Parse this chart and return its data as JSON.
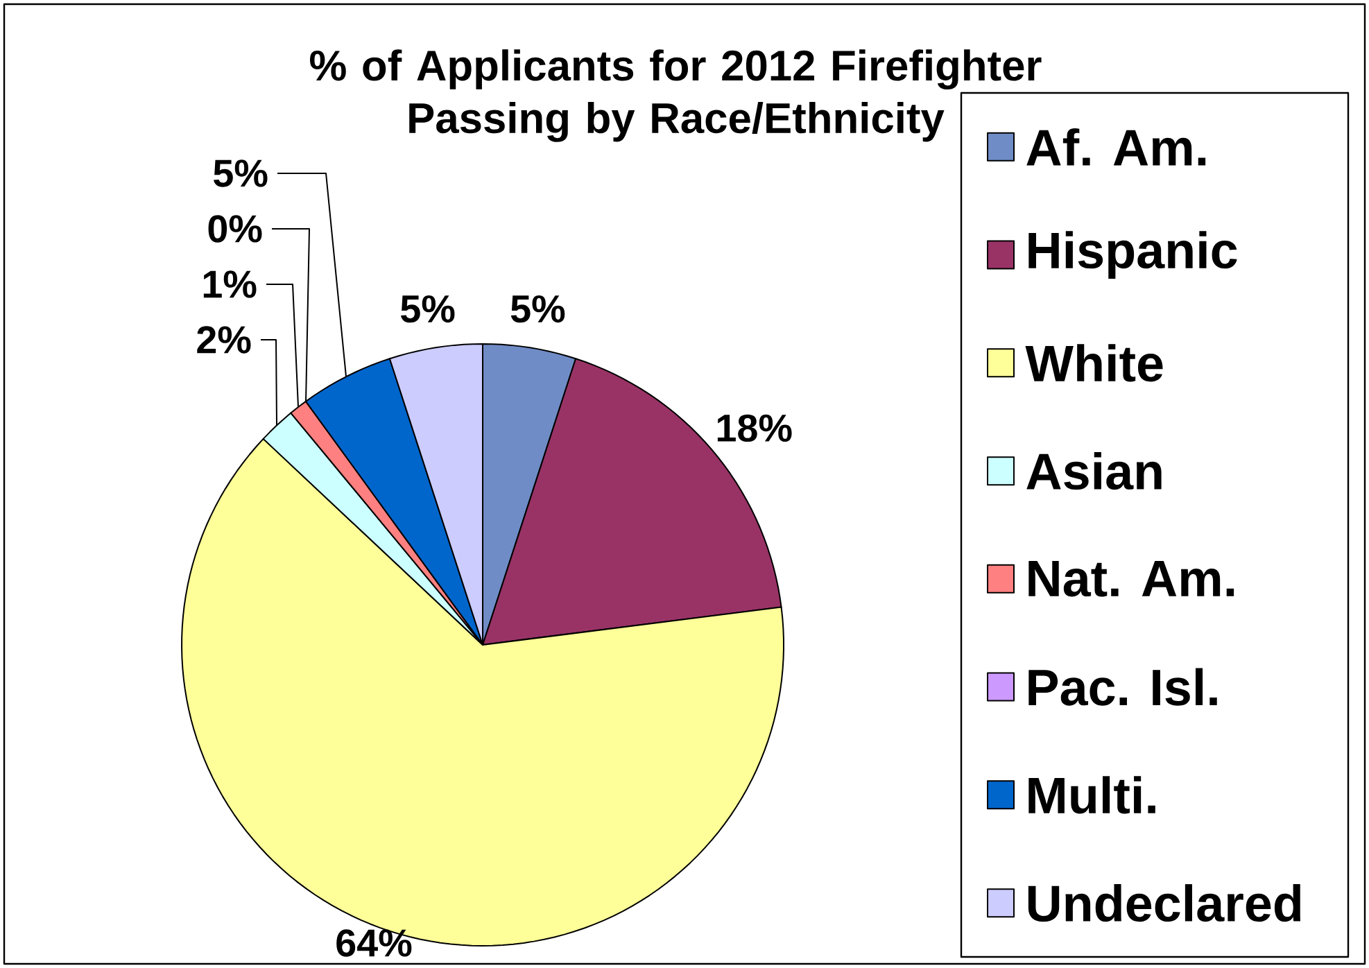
{
  "chart_data": {
    "type": "pie",
    "title": "% of Applicants for 2012 Firefighter Passing by Race/Ethnicity",
    "categories": [
      "Af. Am.",
      "Hispanic",
      "White",
      "Asian",
      "Nat. Am.",
      "Pac. Isl.",
      "Multi.",
      "Undeclared"
    ],
    "values": [
      5,
      18,
      64,
      2,
      1,
      0,
      5,
      5
    ],
    "value_labels": [
      "5%",
      "18%",
      "64%",
      "2%",
      "1%",
      "0%",
      "5%",
      "5%"
    ],
    "colors": [
      "#6f8cc6",
      "#993366",
      "#ffff99",
      "#ccffff",
      "#ff8080",
      "#cc99ff",
      "#0066cc",
      "#ccccff"
    ],
    "data_labels": true,
    "legend": "right"
  }
}
